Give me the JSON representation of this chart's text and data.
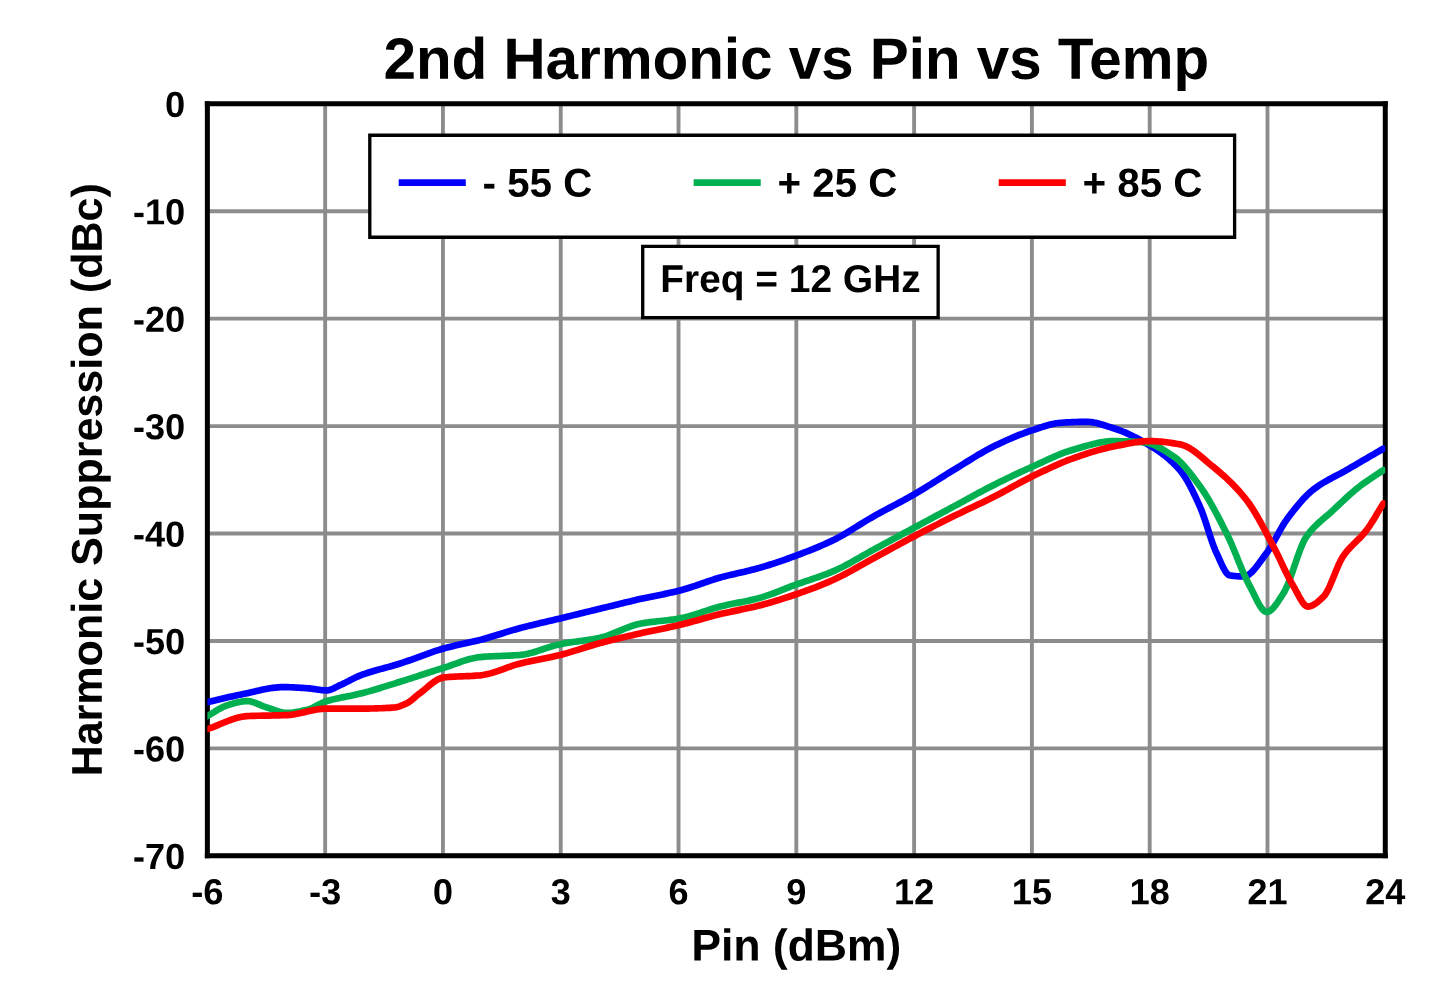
{
  "chart_data": {
    "type": "line",
    "title": "2nd Harmonic vs Pin vs Temp",
    "xlabel": "Pin (dBm)",
    "ylabel": "Harmonic Suppression (dBc)",
    "xlim": [
      -6,
      24
    ],
    "xticks": [
      -6,
      -3,
      0,
      3,
      6,
      9,
      12,
      15,
      18,
      21,
      24
    ],
    "ylim": [
      -70,
      0
    ],
    "yticks": [
      -70,
      -60,
      -50,
      -40,
      -30,
      -20,
      -10,
      0
    ],
    "grid": true,
    "legend": "top",
    "line_style": "solid",
    "annotations": [
      "Freq = 12 GHz"
    ],
    "series": [
      {
        "name": "- 55 C",
        "color": "#0000ff",
        "x": [
          -6.0,
          -5.16,
          -4.06,
          -3.46,
          -2.96,
          -2.61,
          -2.1,
          -1.09,
          0.02,
          0.95,
          1.97,
          2.99,
          4.0,
          5.02,
          6.04,
          7.06,
          8.06,
          8.96,
          9.95,
          10.97,
          11.98,
          13.0,
          14.02,
          15.0,
          15.72,
          16.39,
          17.08,
          18.0,
          18.77,
          19.28,
          19.7,
          20.04,
          20.39,
          20.98,
          21.49,
          22.17,
          23.01,
          23.95
        ],
        "values": [
          -55.7,
          -55.0,
          -54.3,
          -54.4,
          -54.6,
          -54.1,
          -53.2,
          -52.1,
          -50.7,
          -49.9,
          -48.8,
          -47.9,
          -47.0,
          -46.1,
          -45.3,
          -44.1,
          -43.2,
          -42.1,
          -40.6,
          -38.4,
          -36.4,
          -34.1,
          -31.9,
          -30.4,
          -29.7,
          -29.6,
          -30.2,
          -31.8,
          -34.1,
          -37.5,
          -41.8,
          -43.9,
          -44.0,
          -41.8,
          -38.7,
          -35.9,
          -34.1,
          -32.1
        ]
      },
      {
        "name": "+ 25 C",
        "color": "#00b050",
        "x": [
          -6.0,
          -5.5,
          -4.99,
          -4.48,
          -3.97,
          -3.46,
          -2.96,
          -2.1,
          -1.09,
          0.02,
          0.95,
          1.97,
          2.99,
          4.0,
          5.02,
          6.04,
          7.06,
          8.06,
          8.96,
          9.95,
          10.97,
          11.98,
          13.0,
          14.02,
          15.0,
          16.05,
          17.08,
          17.83,
          18.6,
          19.28,
          19.96,
          20.55,
          20.98,
          21.4,
          21.99,
          22.68,
          23.35,
          23.95
        ],
        "values": [
          -57.0,
          -56.0,
          -55.6,
          -56.2,
          -56.7,
          -56.4,
          -55.6,
          -54.9,
          -53.8,
          -52.5,
          -51.5,
          -51.3,
          -50.3,
          -49.7,
          -48.4,
          -47.9,
          -46.8,
          -46.0,
          -44.8,
          -43.5,
          -41.5,
          -39.5,
          -37.5,
          -35.5,
          -33.8,
          -32.2,
          -31.4,
          -31.5,
          -32.8,
          -35.6,
          -40.0,
          -44.9,
          -47.3,
          -45.6,
          -40.3,
          -37.8,
          -35.6,
          -34.1
        ]
      },
      {
        "name": "+ 85 C",
        "color": "#ff0000",
        "x": [
          -6.0,
          -4.99,
          -3.97,
          -2.96,
          -2.1,
          -1.25,
          -0.92,
          -0.6,
          0.02,
          0.95,
          1.97,
          2.99,
          4.0,
          5.02,
          6.04,
          7.06,
          8.06,
          8.96,
          9.95,
          10.97,
          11.98,
          13.0,
          14.02,
          15.0,
          16.05,
          17.08,
          18.0,
          18.77,
          19.62,
          20.47,
          21.15,
          21.66,
          22.03,
          22.42,
          22.93,
          23.52,
          23.95
        ],
        "values": [
          -58.2,
          -57.0,
          -56.9,
          -56.3,
          -56.3,
          -56.2,
          -55.8,
          -54.9,
          -53.4,
          -53.2,
          -52.1,
          -51.3,
          -50.2,
          -49.3,
          -48.5,
          -47.5,
          -46.7,
          -45.7,
          -44.3,
          -42.3,
          -40.3,
          -38.4,
          -36.6,
          -34.7,
          -33.0,
          -31.9,
          -31.4,
          -31.7,
          -33.8,
          -36.9,
          -41.2,
          -44.9,
          -46.8,
          -45.9,
          -42.1,
          -39.7,
          -37.2
        ]
      }
    ]
  }
}
